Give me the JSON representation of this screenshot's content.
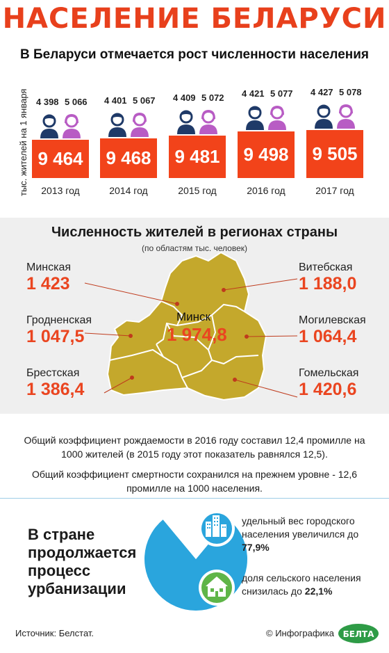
{
  "header": {
    "title": "НАСЕЛЕНИЕ БЕЛАРУСИ",
    "subtitle": "В Беларуси отмечается рост численности населения"
  },
  "chart_data": [
    {
      "type": "bar",
      "ylabel": "тыс. жителей на 1 января",
      "categories": [
        "2013 год",
        "2014 год",
        "2015 год",
        "2016 год",
        "2017 год"
      ],
      "values": [
        9464,
        9468,
        9481,
        9498,
        9505
      ],
      "value_labels": [
        "9 464",
        "9 468",
        "9 481",
        "9 498",
        "9 505"
      ],
      "men": [
        "4 398",
        "4 401",
        "4 409",
        "4 421",
        "4 427"
      ],
      "women": [
        "5 066",
        "5 067",
        "5 072",
        "5 077",
        "5 078"
      ],
      "bar_color": "#f2431a",
      "men_color": "#1f3a68",
      "women_color": "#b85cc4"
    },
    {
      "type": "pie",
      "categories": [
        "urban",
        "rural"
      ],
      "values": [
        77.9,
        22.1
      ],
      "colors": [
        "#2aa5dd",
        "#ffffff"
      ]
    }
  ],
  "regions": {
    "title": "Численность жителей в регионах страны",
    "subtitle": "(по областям тыс. человек)",
    "items": [
      {
        "name": "Минская",
        "value": "1 423"
      },
      {
        "name": "Гродненская",
        "value": "1 047,5"
      },
      {
        "name": "Брестская",
        "value": "1 386,4"
      },
      {
        "name": "Витебская",
        "value": "1 188,0"
      },
      {
        "name": "Могилевская",
        "value": "1 064,4"
      },
      {
        "name": "Гомельская",
        "value": "1 420,6"
      }
    ],
    "capital": {
      "name": "Минск",
      "value": "1 974,8"
    },
    "map_color": "#c4a82c"
  },
  "notes": {
    "birth": "Общий коэффициент рождаемости в 2016 году составил 12,4 промилле на 1000 жителей (в 2015 году этот показатель равнялся 12,5).",
    "death": "Общий коэффициент смертности сохранился на прежнем уровне - 12,6 промилле на 1000 населения."
  },
  "urbanization": {
    "heading": [
      "В стране",
      "продолжается",
      "процесс",
      "урбанизации"
    ],
    "urban_text": "удельный вес городского населения увеличился до",
    "urban_value": "77,9%",
    "rural_text": "доля сельского населения снизилась до",
    "rural_value": "22,1%"
  },
  "footer": {
    "source": "Источник: Белстат.",
    "credit": "© Инфографика",
    "logo_text": "БЕЛТА"
  },
  "icons": [
    "man-icon",
    "woman-icon",
    "city-buildings-icon",
    "house-icon",
    "belta-logo"
  ]
}
